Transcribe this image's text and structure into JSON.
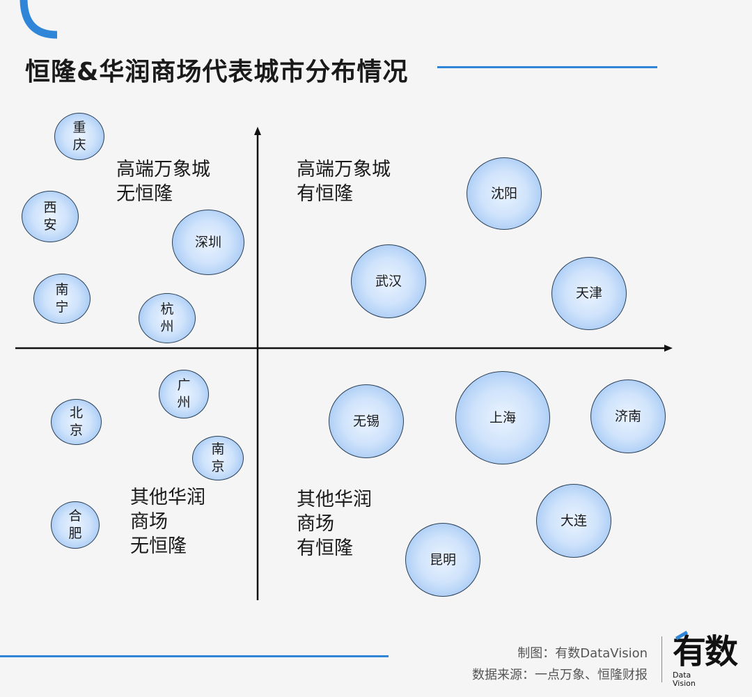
{
  "header": {
    "title": "恒隆&华润商场代表城市分布情况"
  },
  "quadrant_labels": {
    "top_left": [
      "高端万象城",
      "无恒隆"
    ],
    "top_right": [
      "高端万象城",
      "有恒隆"
    ],
    "bottom_left": [
      "其他华润",
      "商场",
      "无恒隆"
    ],
    "bottom_right": [
      "其他华润",
      "商场",
      "有恒隆"
    ]
  },
  "cities": {
    "chongqing": [
      "重",
      "庆"
    ],
    "xian": [
      "西",
      "安"
    ],
    "shenzhen": [
      "深圳"
    ],
    "nanning": [
      "南",
      "宁"
    ],
    "hangzhou": [
      "杭",
      "州"
    ],
    "shenyang": [
      "沈阳"
    ],
    "wuhan": [
      "武汉"
    ],
    "tianjin": [
      "天津"
    ],
    "guangzhou": [
      "广",
      "州"
    ],
    "beijing": [
      "北",
      "京"
    ],
    "nanjing": [
      "南",
      "京"
    ],
    "hefei": [
      "合",
      "肥"
    ],
    "wuxi": [
      "无锡"
    ],
    "shanghai": [
      "上海"
    ],
    "jinan": [
      "济南"
    ],
    "dalian": [
      "大连"
    ],
    "kunming": [
      "昆明"
    ]
  },
  "footer": {
    "credit_maker": "制图：有数DataVision",
    "credit_source": "数据来源：一点万象、恒隆财报",
    "logo_main": "有数",
    "logo_sub": [
      "Data",
      "Vision"
    ]
  },
  "colors": {
    "accent": "#2f86d8",
    "bubble_fill": "#cfe3fb",
    "bubble_edge": "#8ebaf1"
  }
}
